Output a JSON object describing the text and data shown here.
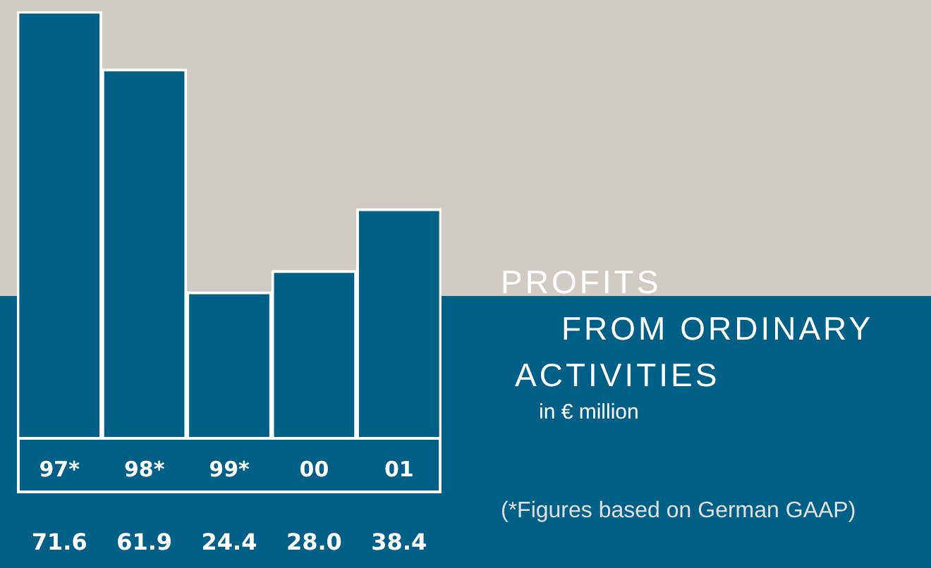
{
  "chart_data": {
    "type": "bar",
    "title": "PROFITS FROM ORDINARY ACTIVITIES",
    "subtitle": "in € million",
    "categories": [
      "97*",
      "98*",
      "99*",
      "00",
      "01"
    ],
    "values": [
      71.6,
      61.9,
      24.4,
      28.0,
      38.4
    ],
    "color": "#005f87",
    "value_labels": [
      "71.6",
      "61.9",
      "24.4",
      "28.0",
      "38.4"
    ],
    "grid": false,
    "legend": false,
    "annotations": [
      "(*Figures based on German GAAP)"
    ]
  }
}
